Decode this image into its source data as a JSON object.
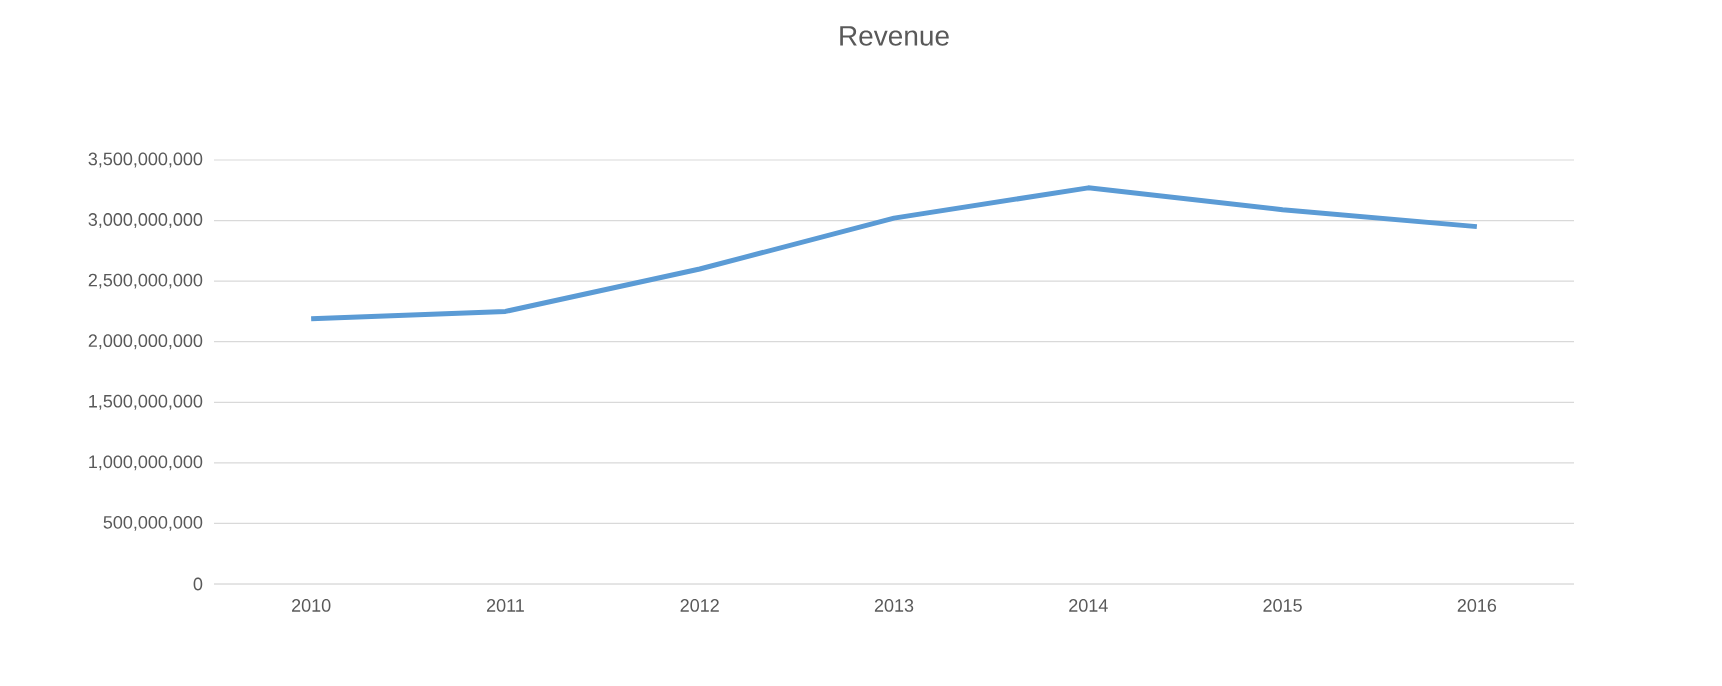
{
  "chart_data": {
    "type": "line",
    "title": "Revenue",
    "categories": [
      "2010",
      "2011",
      "2012",
      "2013",
      "2014",
      "2015",
      "2016"
    ],
    "series": [
      {
        "color": "#5b9bd5",
        "values": [
          2190000000,
          2250000000,
          2600000000,
          3020000000,
          3270000000,
          3090000000,
          2950000000
        ]
      }
    ],
    "ylim": [
      0,
      3500000000
    ],
    "yticks": [
      {
        "value": 0,
        "label": "0"
      },
      {
        "value": 500000000,
        "label": "500,000,000"
      },
      {
        "value": 1000000000,
        "label": "1,000,000,000"
      },
      {
        "value": 1500000000,
        "label": "1,500,000,000"
      },
      {
        "value": 2000000000,
        "label": "2,000,000,000"
      },
      {
        "value": 2500000000,
        "label": "2,500,000,000"
      },
      {
        "value": 3000000000,
        "label": "3,000,000,000"
      },
      {
        "value": 3500000000,
        "label": "3,500,000,000"
      }
    ],
    "grid": "y",
    "marker": "none",
    "line_style": "solid"
  }
}
